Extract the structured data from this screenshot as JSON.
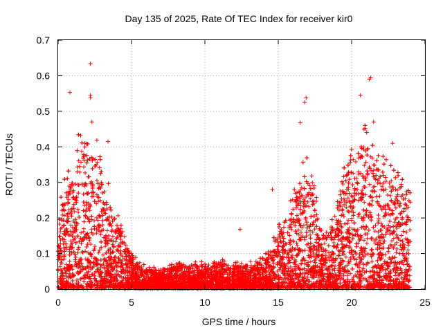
{
  "chart_data": {
    "type": "scatter",
    "title": "Day 135 of 2025, Rate Of TEC Index for receiver kir0",
    "xlabel": "GPS time / hours",
    "ylabel": "ROTI / TECUs",
    "xlim": [
      0,
      25
    ],
    "ylim": [
      0,
      0.7
    ],
    "xticks": [
      0,
      5,
      10,
      15,
      20,
      25
    ],
    "yticks": [
      0,
      0.1,
      0.2,
      0.3,
      0.4,
      0.5,
      0.6,
      0.7
    ],
    "ytick_labels": [
      "0",
      "0.1",
      "0.2",
      "0.3",
      "0.4",
      "0.5",
      "0.6",
      "0.7"
    ],
    "grid": true,
    "marker": "+",
    "series_color": "#ff0000",
    "envelope": {
      "x": [
        0,
        0.5,
        1.0,
        1.5,
        2.0,
        2.5,
        3.0,
        3.5,
        4.0,
        4.5,
        5.0,
        5.5,
        6.0,
        7.0,
        8.0,
        9.0,
        10.0,
        11.0,
        12.0,
        13.0,
        14.0,
        14.5,
        15.0,
        15.5,
        16.0,
        16.5,
        17.0,
        17.5,
        18.0,
        18.5,
        19.0,
        19.5,
        20.0,
        20.5,
        21.0,
        21.5,
        22.0,
        22.5,
        23.0,
        23.5,
        24.0
      ],
      "typical_max": [
        0.18,
        0.25,
        0.28,
        0.35,
        0.38,
        0.33,
        0.3,
        0.22,
        0.17,
        0.12,
        0.09,
        0.06,
        0.05,
        0.05,
        0.06,
        0.06,
        0.06,
        0.07,
        0.06,
        0.06,
        0.07,
        0.1,
        0.14,
        0.18,
        0.2,
        0.28,
        0.3,
        0.22,
        0.14,
        0.14,
        0.22,
        0.3,
        0.34,
        0.35,
        0.38,
        0.34,
        0.3,
        0.28,
        0.26,
        0.24,
        0.26
      ]
    },
    "notable_points": [
      {
        "x": 2.2,
        "y": 0.634
      },
      {
        "x": 2.2,
        "y": 0.545
      },
      {
        "x": 2.2,
        "y": 0.538
      },
      {
        "x": 0.8,
        "y": 0.553
      },
      {
        "x": 2.3,
        "y": 0.47
      },
      {
        "x": 3.4,
        "y": 0.415
      },
      {
        "x": 16.9,
        "y": 0.538
      },
      {
        "x": 16.8,
        "y": 0.525
      },
      {
        "x": 16.5,
        "y": 0.468
      },
      {
        "x": 21.3,
        "y": 0.594
      },
      {
        "x": 21.2,
        "y": 0.59
      },
      {
        "x": 20.6,
        "y": 0.545
      },
      {
        "x": 21.5,
        "y": 0.47
      },
      {
        "x": 22.8,
        "y": 0.41
      },
      {
        "x": 12.4,
        "y": 0.168
      },
      {
        "x": 14.6,
        "y": 0.28
      }
    ],
    "n_points": 9000
  }
}
